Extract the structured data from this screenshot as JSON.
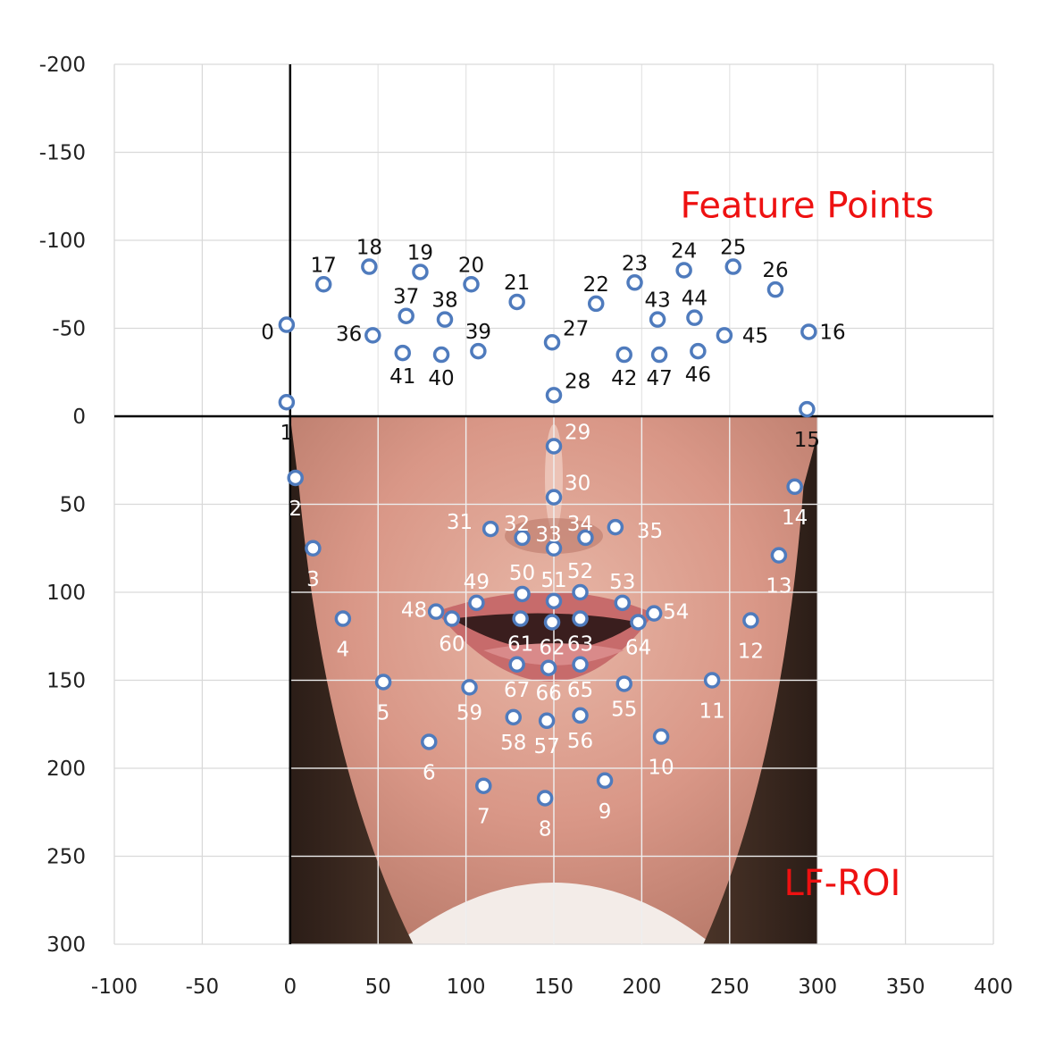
{
  "chart_data": {
    "type": "scatter",
    "title": "",
    "xlabel": "",
    "ylabel": "",
    "xlim": [
      -100,
      400
    ],
    "ylim": [
      -200,
      300
    ],
    "y_axis_inverted": true,
    "grid": true,
    "x_ticks": [
      "-100",
      "-50",
      "0",
      "50",
      "100",
      "150",
      "200",
      "250",
      "300",
      "350",
      "400"
    ],
    "y_ticks": [
      "-200",
      "-150",
      "-100",
      "-50",
      "0",
      "50",
      "100",
      "150",
      "200",
      "250",
      "300"
    ],
    "x_tick_values": [
      -100,
      -50,
      0,
      50,
      100,
      150,
      200,
      250,
      300,
      350,
      400
    ],
    "y_tick_values": [
      -200,
      -150,
      -100,
      -50,
      0,
      50,
      100,
      150,
      200,
      250,
      300
    ],
    "roi_region": {
      "x": [
        0,
        300
      ],
      "y": [
        0,
        300
      ]
    },
    "annotations": [
      {
        "text": "Feature Points",
        "x": 290,
        "y": -120,
        "color": "#ee1111"
      },
      {
        "text": "LF-ROI",
        "x": 310,
        "y": 265,
        "color": "#ee1111"
      }
    ],
    "marker_color": "#4f7bbd",
    "points": [
      {
        "id": "0",
        "x": -2,
        "y": -52
      },
      {
        "id": "1",
        "x": -2,
        "y": -8
      },
      {
        "id": "2",
        "x": 3,
        "y": 35
      },
      {
        "id": "3",
        "x": 13,
        "y": 75
      },
      {
        "id": "4",
        "x": 30,
        "y": 115
      },
      {
        "id": "5",
        "x": 53,
        "y": 151
      },
      {
        "id": "6",
        "x": 79,
        "y": 185
      },
      {
        "id": "7",
        "x": 110,
        "y": 210
      },
      {
        "id": "8",
        "x": 145,
        "y": 217
      },
      {
        "id": "9",
        "x": 179,
        "y": 207
      },
      {
        "id": "10",
        "x": 211,
        "y": 182
      },
      {
        "id": "11",
        "x": 240,
        "y": 150
      },
      {
        "id": "12",
        "x": 262,
        "y": 116
      },
      {
        "id": "13",
        "x": 278,
        "y": 79
      },
      {
        "id": "14",
        "x": 287,
        "y": 40
      },
      {
        "id": "15",
        "x": 294,
        "y": -4
      },
      {
        "id": "16",
        "x": 295,
        "y": -48
      },
      {
        "id": "17",
        "x": 19,
        "y": -75
      },
      {
        "id": "18",
        "x": 45,
        "y": -85
      },
      {
        "id": "19",
        "x": 74,
        "y": -82
      },
      {
        "id": "20",
        "x": 103,
        "y": -75
      },
      {
        "id": "21",
        "x": 129,
        "y": -65
      },
      {
        "id": "22",
        "x": 174,
        "y": -64
      },
      {
        "id": "23",
        "x": 196,
        "y": -76
      },
      {
        "id": "24",
        "x": 224,
        "y": -83
      },
      {
        "id": "25",
        "x": 252,
        "y": -85
      },
      {
        "id": "26",
        "x": 276,
        "y": -72
      },
      {
        "id": "27",
        "x": 149,
        "y": -42
      },
      {
        "id": "28",
        "x": 150,
        "y": -12
      },
      {
        "id": "29",
        "x": 150,
        "y": 17
      },
      {
        "id": "30",
        "x": 150,
        "y": 46
      },
      {
        "id": "31",
        "x": 114,
        "y": 64
      },
      {
        "id": "32",
        "x": 132,
        "y": 69
      },
      {
        "id": "33",
        "x": 150,
        "y": 75
      },
      {
        "id": "34",
        "x": 168,
        "y": 69
      },
      {
        "id": "35",
        "x": 185,
        "y": 63
      },
      {
        "id": "36",
        "x": 47,
        "y": -46
      },
      {
        "id": "37",
        "x": 66,
        "y": -57
      },
      {
        "id": "38",
        "x": 88,
        "y": -55
      },
      {
        "id": "39",
        "x": 107,
        "y": -37
      },
      {
        "id": "40",
        "x": 86,
        "y": -35
      },
      {
        "id": "41",
        "x": 64,
        "y": -36
      },
      {
        "id": "42",
        "x": 190,
        "y": -35
      },
      {
        "id": "43",
        "x": 209,
        "y": -55
      },
      {
        "id": "44",
        "x": 230,
        "y": -56
      },
      {
        "id": "45",
        "x": 247,
        "y": -46
      },
      {
        "id": "46",
        "x": 232,
        "y": -37
      },
      {
        "id": "47",
        "x": 210,
        "y": -35
      },
      {
        "id": "48",
        "x": 83,
        "y": 111
      },
      {
        "id": "49",
        "x": 106,
        "y": 106
      },
      {
        "id": "50",
        "x": 132,
        "y": 101
      },
      {
        "id": "51",
        "x": 150,
        "y": 105
      },
      {
        "id": "52",
        "x": 165,
        "y": 100
      },
      {
        "id": "53",
        "x": 189,
        "y": 106
      },
      {
        "id": "54",
        "x": 207,
        "y": 112
      },
      {
        "id": "55",
        "x": 190,
        "y": 152
      },
      {
        "id": "56",
        "x": 165,
        "y": 170
      },
      {
        "id": "57",
        "x": 146,
        "y": 173
      },
      {
        "id": "58",
        "x": 127,
        "y": 171
      },
      {
        "id": "59",
        "x": 102,
        "y": 154
      },
      {
        "id": "60",
        "x": 92,
        "y": 115
      },
      {
        "id": "61",
        "x": 131,
        "y": 115
      },
      {
        "id": "62",
        "x": 149,
        "y": 117
      },
      {
        "id": "63",
        "x": 165,
        "y": 115
      },
      {
        "id": "64",
        "x": 198,
        "y": 117
      },
      {
        "id": "65",
        "x": 165,
        "y": 141
      },
      {
        "id": "66",
        "x": 147,
        "y": 143
      },
      {
        "id": "67",
        "x": 129,
        "y": 141
      }
    ]
  }
}
